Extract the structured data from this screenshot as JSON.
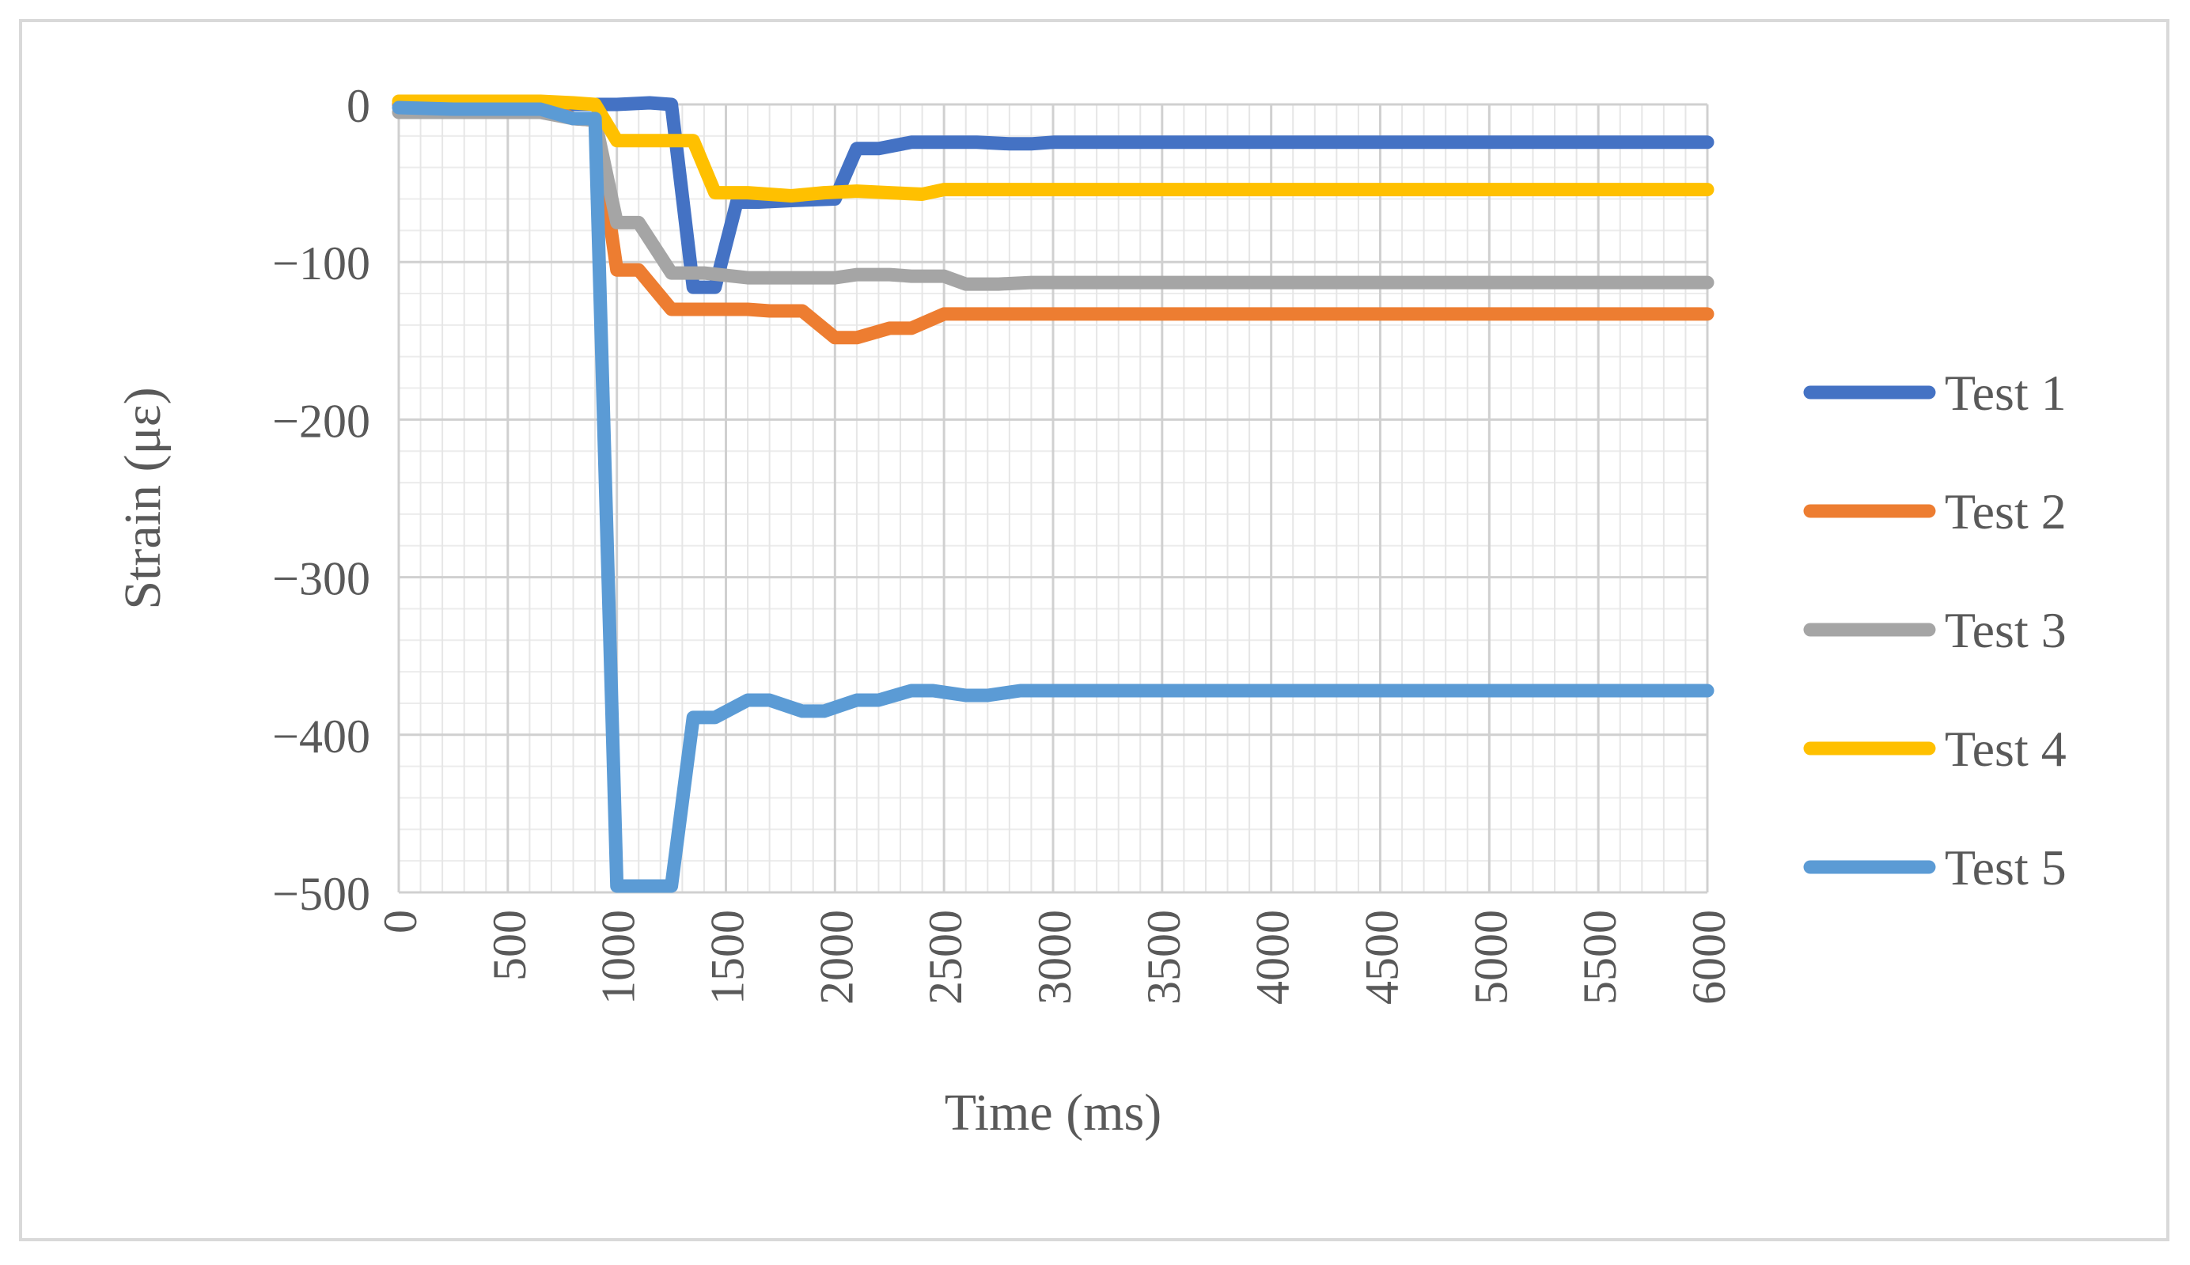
{
  "chart_data": {
    "type": "line",
    "title": "",
    "xlabel": "Time (ms)",
    "ylabel": "Strain (με)",
    "xlim": [
      0,
      6000
    ],
    "ylim": [
      -500,
      0
    ],
    "xticks": [
      0,
      500,
      1000,
      1500,
      2000,
      2500,
      3000,
      3500,
      4000,
      4500,
      5000,
      5500,
      6000
    ],
    "yticks": [
      0,
      -100,
      -200,
      -300,
      -400,
      -500
    ],
    "ytick_labels": [
      "0",
      "−100",
      "−200",
      "−300",
      "−400",
      "−500"
    ],
    "grid": true,
    "legend_position": "right",
    "series": [
      {
        "name": "Test 1",
        "color": "#4472c4",
        "x": [
          0,
          250,
          500,
          650,
          800,
          900,
          1000,
          1150,
          1250,
          1350,
          1450,
          1550,
          1650,
          1800,
          2000,
          2100,
          2200,
          2350,
          2500,
          2650,
          2800,
          2900,
          3000,
          3500,
          4000,
          4500,
          5000,
          5500,
          6000
        ],
        "y": [
          0,
          0,
          0,
          0,
          0,
          0,
          0,
          1,
          0,
          -116,
          -116,
          -62,
          -62,
          -61,
          -60,
          -28,
          -28,
          -24,
          -24,
          -24,
          -25,
          -25,
          -24,
          -24,
          -24,
          -24,
          -24,
          -24,
          -24
        ]
      },
      {
        "name": "Test 2",
        "color": "#ed7d31",
        "x": [
          0,
          250,
          500,
          650,
          800,
          900,
          1000,
          1100,
          1250,
          1400,
          1600,
          1700,
          1850,
          2000,
          2100,
          2250,
          2350,
          2500,
          3000,
          3500,
          4000,
          4500,
          5000,
          5500,
          6000
        ],
        "y": [
          0,
          0,
          0,
          0,
          -9,
          -10,
          -105,
          -105,
          -130,
          -130,
          -130,
          -131,
          -131,
          -148,
          -148,
          -142,
          -142,
          -133,
          -133,
          -133,
          -133,
          -133,
          -133,
          -133,
          -133
        ]
      },
      {
        "name": "Test 3",
        "color": "#a5a5a5",
        "x": [
          0,
          250,
          500,
          650,
          800,
          900,
          1000,
          1100,
          1250,
          1400,
          1600,
          1750,
          1850,
          2000,
          2100,
          2250,
          2350,
          2500,
          2600,
          2750,
          2900,
          3500,
          4000,
          4500,
          5000,
          5500,
          6000
        ],
        "y": [
          -5,
          -5,
          -5,
          -5,
          -9,
          -10,
          -75,
          -75,
          -107,
          -107,
          -110,
          -110,
          -110,
          -110,
          -108,
          -108,
          -109,
          -109,
          -114,
          -114,
          -113,
          -113,
          -113,
          -113,
          -113,
          -113,
          -113
        ]
      },
      {
        "name": "Test 4",
        "color": "#ffc000",
        "x": [
          0,
          250,
          500,
          650,
          800,
          900,
          1000,
          1150,
          1350,
          1450,
          1600,
          1800,
          1950,
          2100,
          2250,
          2400,
          2500,
          3000,
          3500,
          4000,
          4500,
          5000,
          5500,
          6000
        ],
        "y": [
          2,
          2,
          2,
          2,
          1,
          0,
          -23,
          -23,
          -23,
          -56,
          -56,
          -58,
          -56,
          -55,
          -56,
          -57,
          -54,
          -54,
          -54,
          -54,
          -54,
          -54,
          -54,
          -54
        ]
      },
      {
        "name": "Test 5",
        "color": "#5b9bd5",
        "x": [
          0,
          250,
          500,
          650,
          800,
          900,
          1000,
          1150,
          1250,
          1350,
          1450,
          1600,
          1700,
          1850,
          1950,
          2100,
          2200,
          2350,
          2450,
          2600,
          2700,
          2850,
          3000,
          3500,
          4000,
          4500,
          5000,
          5500,
          6000
        ],
        "y": [
          -2,
          -3,
          -3,
          -3,
          -9,
          -9,
          -496,
          -496,
          -496,
          -389,
          -389,
          -378,
          -378,
          -385,
          -385,
          -378,
          -378,
          -372,
          -372,
          -375,
          -375,
          -372,
          -372,
          -372,
          -372,
          -372,
          -372,
          -372,
          -372
        ]
      }
    ]
  }
}
